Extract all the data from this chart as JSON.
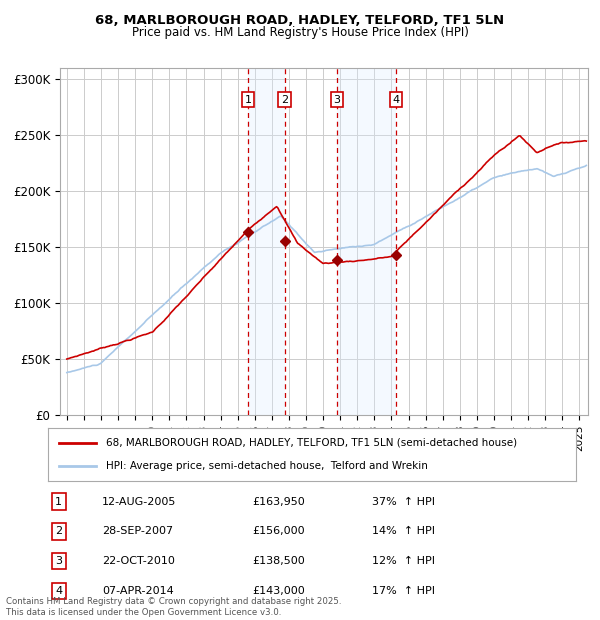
{
  "title1": "68, MARLBOROUGH ROAD, HADLEY, TELFORD, TF1 5LN",
  "title2": "Price paid vs. HM Land Registry's House Price Index (HPI)",
  "ylabel_ticks": [
    "£0",
    "£50K",
    "£100K",
    "£150K",
    "£200K",
    "£250K",
    "£300K"
  ],
  "ytick_vals": [
    0,
    50000,
    100000,
    150000,
    200000,
    250000,
    300000
  ],
  "ylim": [
    0,
    310000
  ],
  "xlim_start": 1994.6,
  "xlim_end": 2025.5,
  "transactions": [
    {
      "num": 1,
      "date": "12-AUG-2005",
      "price": 163950,
      "pct": "37%",
      "dir": "↑",
      "x": 2005.61
    },
    {
      "num": 2,
      "date": "28-SEP-2007",
      "price": 156000,
      "pct": "14%",
      "dir": "↑",
      "x": 2007.74
    },
    {
      "num": 3,
      "date": "22-OCT-2010",
      "price": 138500,
      "pct": "12%",
      "dir": "↑",
      "x": 2010.8
    },
    {
      "num": 4,
      "date": "07-APR-2014",
      "price": 143000,
      "pct": "17%",
      "dir": "↑",
      "x": 2014.27
    }
  ],
  "hpi_line_color": "#a8c8e8",
  "price_line_color": "#cc0000",
  "marker_color": "#990000",
  "vline_color": "#cc0000",
  "shade_color": "#ddeeff",
  "grid_color": "#cccccc",
  "bg_color": "#ffffff",
  "footnote": "Contains HM Land Registry data © Crown copyright and database right 2025.\nThis data is licensed under the Open Government Licence v3.0.",
  "legend1": "68, MARLBOROUGH ROAD, HADLEY, TELFORD, TF1 5LN (semi-detached house)",
  "legend2": "HPI: Average price, semi-detached house,  Telford and Wrekin"
}
